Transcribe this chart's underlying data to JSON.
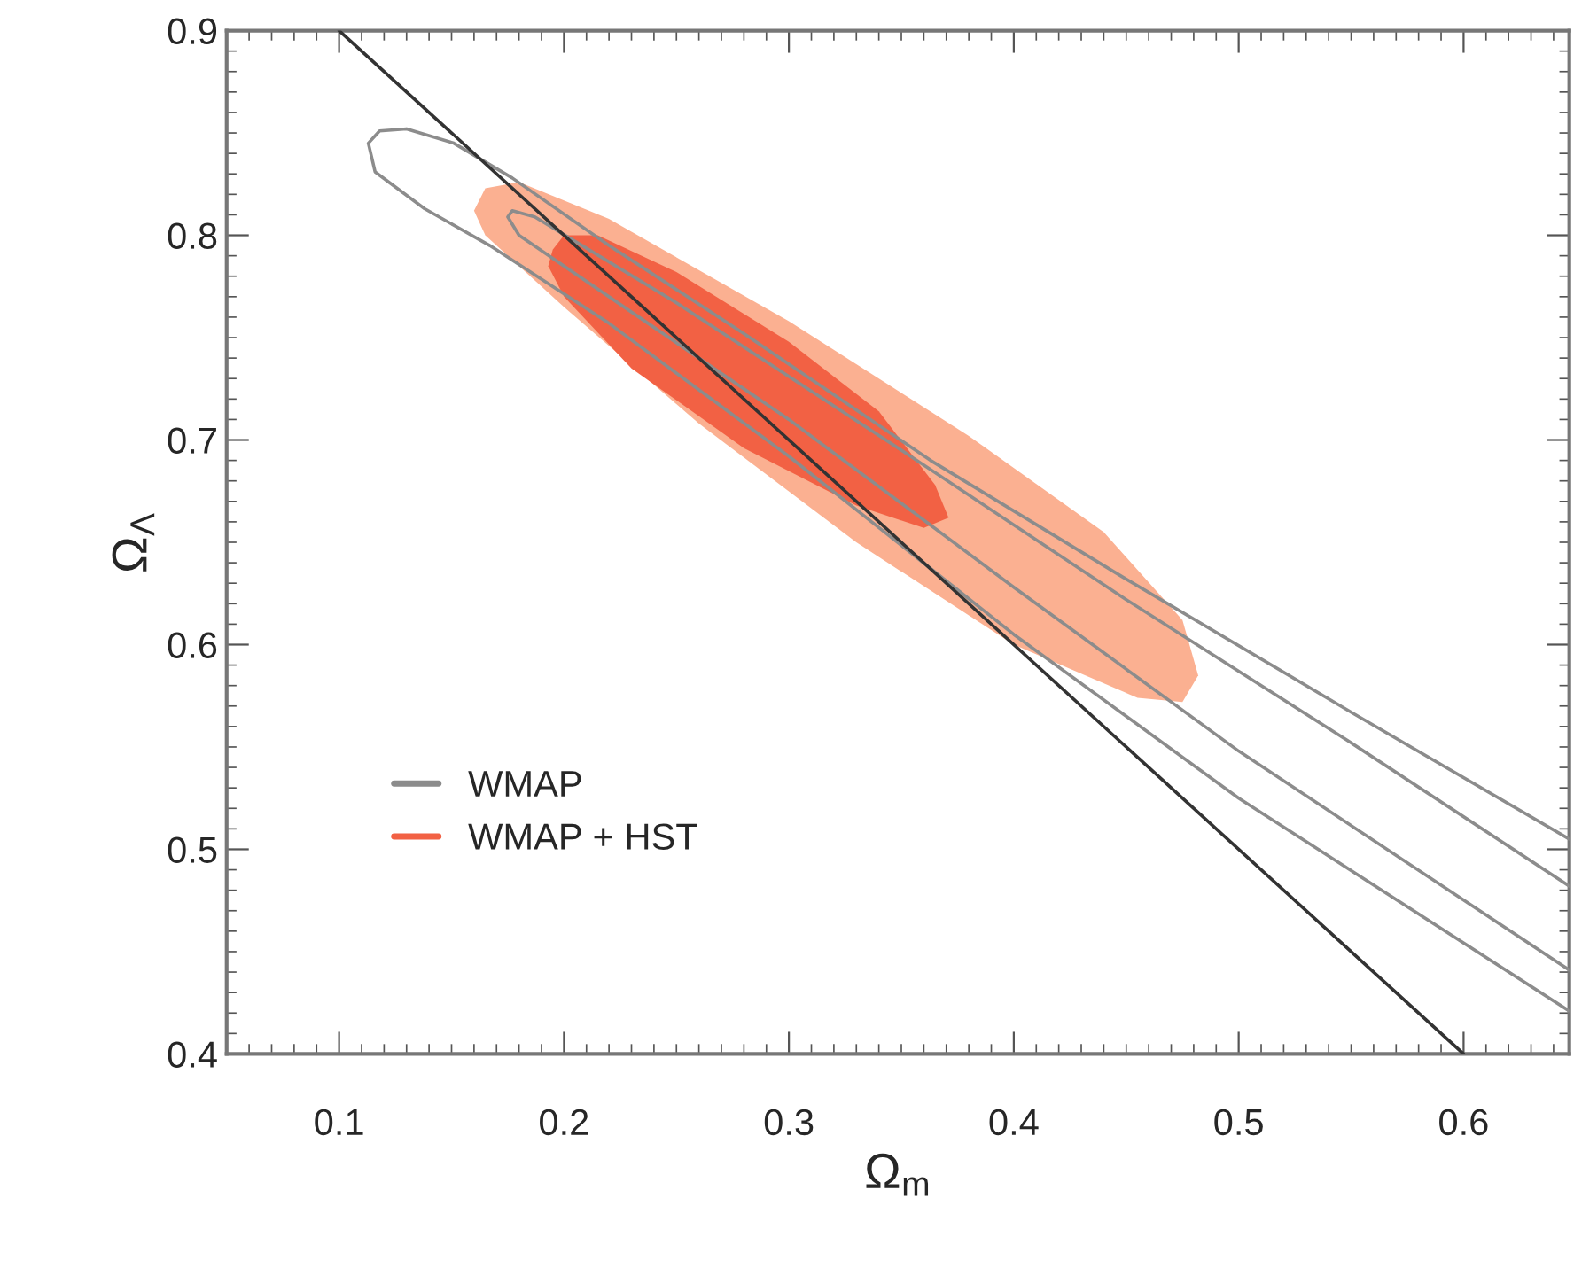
{
  "chart_data": {
    "type": "line",
    "xlabel": "Ω$_{m}$",
    "ylabel": "Ω$_{Λ}$",
    "xlim": [
      0.05,
      0.647
    ],
    "ylim": [
      0.4,
      0.9
    ],
    "xticks": [
      0.1,
      0.2,
      0.3,
      0.4,
      0.5,
      0.6
    ],
    "yticks": [
      0.4,
      0.5,
      0.6,
      0.7,
      0.8,
      0.9
    ],
    "grid": false,
    "legend": "bottom left",
    "series": [
      {
        "name": "WMAP",
        "color": "#8c8c8c",
        "x": [
          0.647,
          0.55,
          0.45,
          0.363,
          0.28,
          0.22,
          0.177,
          0.151,
          0.13,
          0.118,
          0.113,
          0.116,
          0.138,
          0.167,
          0.22,
          0.3,
          0.4,
          0.5,
          0.647
        ],
        "values": [
          0.505,
          0.567,
          0.632,
          0.69,
          0.752,
          0.795,
          0.828,
          0.845,
          0.852,
          0.851,
          0.845,
          0.831,
          0.813,
          0.795,
          0.757,
          0.692,
          0.605,
          0.525,
          0.421
        ]
      },
      {
        "type": "area",
        "name": "WMAP + HST",
        "color": "#f26144",
        "x": [
          0.195,
          0.2,
          0.215,
          0.25,
          0.3,
          0.34,
          0.365,
          0.371,
          0.36,
          0.33,
          0.28,
          0.23,
          0.2,
          0.193
        ],
        "values": [
          0.793,
          0.8,
          0.8,
          0.782,
          0.748,
          0.714,
          0.678,
          0.662,
          0.657,
          0.668,
          0.696,
          0.735,
          0.77,
          0.785
        ]
      },
      {
        "type": "area",
        "color": "#fbb091",
        "x": [
          0.16,
          0.165,
          0.18,
          0.22,
          0.3,
          0.38,
          0.44,
          0.475,
          0.482,
          0.475,
          0.455,
          0.4,
          0.33,
          0.26,
          0.2,
          0.165
        ],
        "values": [
          0.812,
          0.823,
          0.826,
          0.808,
          0.758,
          0.702,
          0.655,
          0.612,
          0.585,
          0.572,
          0.574,
          0.6,
          0.65,
          0.708,
          0.765,
          0.8
        ]
      },
      {
        "color": "#8c8c8c",
        "x": [
          0.647,
          0.55,
          0.45,
          0.35,
          0.25,
          0.187,
          0.177,
          0.175,
          0.18,
          0.2,
          0.3,
          0.4,
          0.5,
          0.647
        ],
        "values": [
          0.482,
          0.552,
          0.622,
          0.695,
          0.767,
          0.809,
          0.812,
          0.809,
          0.8,
          0.785,
          0.71,
          0.628,
          0.548,
          0.441
        ]
      },
      {
        "color": "#333333",
        "x": [
          0.1,
          0.6
        ],
        "values": [
          0.9,
          0.4
        ]
      }
    ]
  }
}
